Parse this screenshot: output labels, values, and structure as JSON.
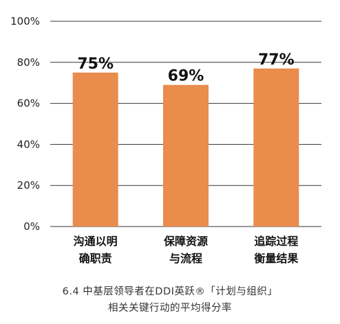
{
  "chart_data": {
    "type": "bar",
    "categories": [
      [
        "沟通以明",
        "确职责"
      ],
      [
        "保障资源",
        "与流程"
      ],
      [
        "追踪过程",
        "衡量结果"
      ]
    ],
    "values": [
      75,
      69,
      77
    ],
    "data_labels": [
      "75%",
      "69%",
      "77%"
    ],
    "y_ticks": [
      "0%",
      "20%",
      "40%",
      "60%",
      "80%",
      "100%"
    ],
    "ylim": [
      0,
      100
    ],
    "grid": true,
    "bar_color": "#E98C4C",
    "gridline_color": "#333333",
    "title": "",
    "xlabel": "",
    "ylabel": ""
  },
  "caption": {
    "line1": "6.4 中基层领导者在DDI英跃®「计划与组织」",
    "line2": "相关关键行动的平均得分率"
  }
}
